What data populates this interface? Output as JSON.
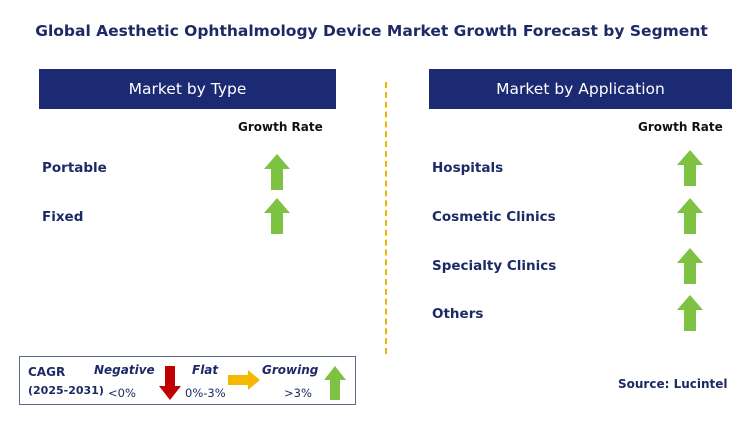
{
  "title": "Global Aesthetic Ophthalmology Device Market Growth Forecast by Segment",
  "left_panel": {
    "header": "Market by Type",
    "column_label": "Growth Rate",
    "rows": [
      {
        "label": "Portable",
        "trend": "growing"
      },
      {
        "label": "Fixed",
        "trend": "growing"
      }
    ]
  },
  "right_panel": {
    "header": "Market by Application",
    "column_label": "Growth Rate",
    "rows": [
      {
        "label": "Hospitals",
        "trend": "growing"
      },
      {
        "label": "Cosmetic Clinics",
        "trend": "growing"
      },
      {
        "label": "Specialty Clinics",
        "trend": "growing"
      },
      {
        "label": "Others",
        "trend": "growing"
      }
    ]
  },
  "legend": {
    "cagr": "CAGR",
    "period": "(2025-2031)",
    "negative_label": "Negative",
    "negative_range": "<0%",
    "flat_label": "Flat",
    "flat_range": "0%-3%",
    "growing_label": "Growing",
    "growing_range": ">3%"
  },
  "source": "Source: Lucintel",
  "colors": {
    "header_bg": "#1b2a72",
    "text_navy": "#1d2a66",
    "growing_arrow": "#7dc243",
    "negative_arrow": "#c00000",
    "flat_arrow": "#f5b800",
    "divider": "#f0b400"
  }
}
